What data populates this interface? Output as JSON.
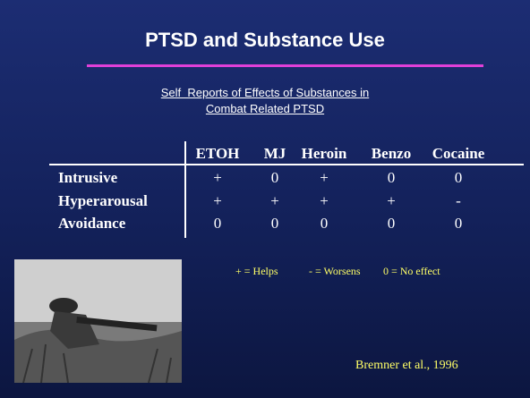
{
  "header": {
    "title": "PTSD and Substance Use",
    "subtitle": [
      "Self  Reports of Effects of Substances in",
      "Combat Related PTSD"
    ]
  },
  "table": {
    "columns": [
      "ETOH",
      "MJ",
      "Heroin",
      "Benzo",
      "Cocaine"
    ],
    "rows": [
      {
        "label": "Intrusive",
        "cells": [
          "+",
          "0",
          "+",
          "0",
          "0"
        ]
      },
      {
        "label": "Hyperarousal",
        "cells": [
          "+",
          "+",
          "+",
          "+",
          "-"
        ]
      },
      {
        "label": "Avoidance",
        "cells": [
          "0",
          "0",
          "0",
          "0",
          "0"
        ]
      }
    ]
  },
  "legend": [
    "+ = Helps",
    "- = Worsens",
    "0 = No effect"
  ],
  "citation": "Bremner et al., 1996"
}
